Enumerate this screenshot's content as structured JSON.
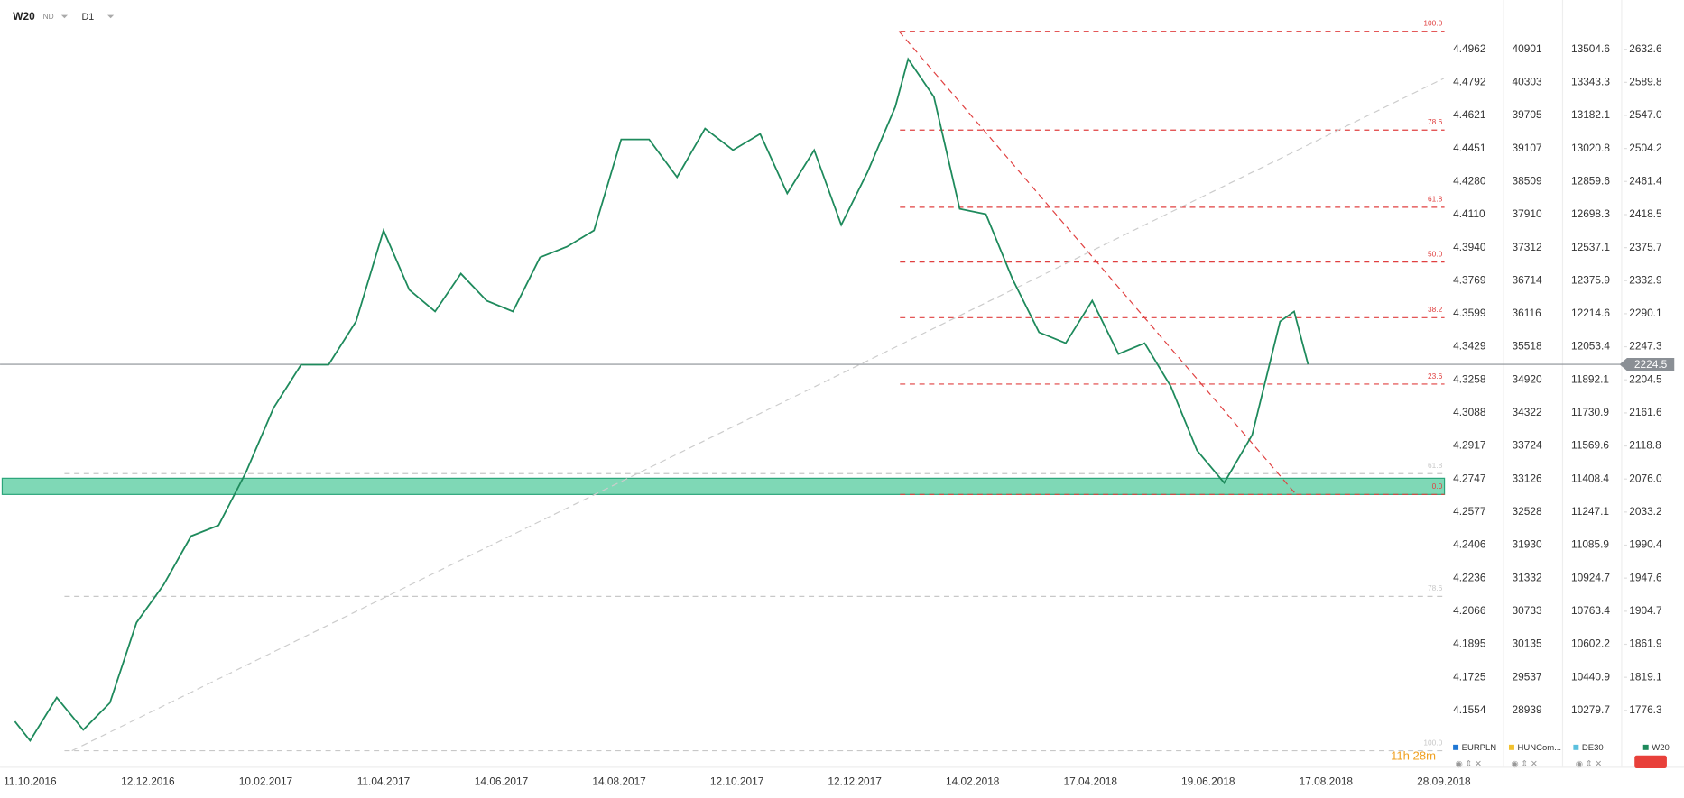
{
  "chart_data": {
    "type": "line",
    "symbol": "W20",
    "symbol_type": "IND",
    "interval": "D1",
    "timer": "11h 28m",
    "last_price": 2224.5,
    "ylim": [
      1709.6,
      2696.5
    ],
    "yticks": [
      2632.6,
      2589.8,
      {
        "value": 2547.0,
        "label": "2547.0"
      },
      2504.2,
      2461.4,
      2418.5,
      2375.7,
      2332.9,
      2290.1,
      2247.3,
      2204.5,
      2161.6,
      2118.8,
      {
        "value": 2076.0,
        "label": "2076.0"
      },
      2033.2,
      1990.4,
      1947.6,
      1904.7,
      1861.9,
      1819.1,
      1776.3
    ],
    "other_axes": [
      {
        "name": "EURPLN",
        "labels": [
          "4.4962",
          "4.4792",
          "4.4621",
          "4.4451",
          "4.4280",
          "4.4110",
          "4.3940",
          "4.3769",
          "4.3599",
          "4.3429",
          "4.3258",
          "4.3088",
          "4.2917",
          "4.2747",
          "4.2577",
          "4.2406",
          "4.2236",
          "4.2066",
          "4.1895",
          "4.1725",
          "4.1554"
        ]
      },
      {
        "name": "HUNComp",
        "labels": [
          "40901",
          "40303",
          "39705",
          "39107",
          "38509",
          "37910",
          "37312",
          "36714",
          "36116",
          "35518",
          "34920",
          "34322",
          "33724",
          "33126",
          "32528",
          "31930",
          "31332",
          "30733",
          "30135",
          "29537",
          "28939"
        ]
      },
      {
        "name": "DE30",
        "labels": [
          "13504.6",
          "13343.3",
          "13182.1",
          "13020.8",
          "12859.6",
          "12698.3",
          "12537.1",
          "12375.9",
          "12214.6",
          "12053.4",
          "11892.1",
          "11730.9",
          "11569.6",
          "11408.4",
          "11247.1",
          "11085.9",
          "10924.7",
          "10763.4",
          "10602.2",
          "10440.9",
          "10279.7"
        ]
      }
    ],
    "xticks": [
      "11.10.2016",
      "12.12.2016",
      "10.02.2017",
      "11.04.2017",
      "14.06.2017",
      "14.08.2017",
      "12.10.2017",
      "12.12.2017",
      "14.02.2018",
      "17.04.2018",
      "19.06.2018",
      "17.08.2018",
      "28.09.2018"
    ],
    "x": [
      "03.10.2016",
      "11.10.2016",
      "25.10.2016",
      "08.11.2016",
      "22.11.2016",
      "06.12.2016",
      "20.12.2016",
      "03.01.2017",
      "17.01.2017",
      "31.01.2017",
      "14.02.2017",
      "28.02.2017",
      "14.03.2017",
      "28.03.2017",
      "11.04.2017",
      "25.04.2017",
      "09.05.2017",
      "23.05.2017",
      "06.06.2017",
      "20.06.2017",
      "04.07.2017",
      "18.07.2017",
      "01.08.2017",
      "15.08.2017",
      "29.08.2017",
      "12.09.2017",
      "26.09.2017",
      "10.10.2017",
      "24.10.2017",
      "07.11.2017",
      "21.11.2017",
      "05.12.2017",
      "19.12.2017",
      "03.01.2018",
      "10.01.2018",
      "24.01.2018",
      "07.02.2018",
      "21.02.2018",
      "07.03.2018",
      "21.03.2018",
      "04.04.2018",
      "18.04.2018",
      "02.05.2018",
      "16.05.2018",
      "30.05.2018",
      "13.06.2018",
      "27.06.2018",
      "11.07.2018",
      "25.07.2018",
      "01.08.2018",
      "08.08.2018"
    ],
    "series": [
      {
        "name": "W20",
        "color": "#1e8a5c",
        "values": [
          1762,
          1737,
          1793,
          1751,
          1786,
          1890,
          1939,
          2002,
          2016,
          2085,
          2168,
          2224,
          2224,
          2280,
          2398,
          2321,
          2293,
          2342,
          2307,
          2293,
          2363,
          2377,
          2398,
          2516,
          2516,
          2467,
          2530,
          2502,
          2523,
          2446,
          2502,
          2405,
          2474,
          2558,
          2620,
          2571,
          2426,
          2419,
          2335,
          2266,
          2252,
          2307,
          2238,
          2252,
          2196,
          2113,
          2071,
          2133,
          2280,
          2293,
          2224.5
        ]
      }
    ],
    "zone": [
      2056,
      2077
    ],
    "fib_levels": [
      {
        "label": "100.0",
        "price": 2656,
        "color": "#e04040"
      },
      {
        "label": "78.6",
        "price": 2528,
        "color": "#e04040"
      },
      {
        "label": "61.8",
        "price": 2428,
        "color": "#e04040"
      },
      {
        "label": "50.0",
        "price": 2357,
        "color": "#e04040"
      },
      {
        "label": "38.2",
        "price": 2285,
        "color": "#e04040"
      },
      {
        "label": "23.6",
        "price": 2199,
        "color": "#e04040"
      },
      {
        "label": "0.0",
        "price": 2056,
        "color": "#e04040"
      },
      {
        "label": "61.8",
        "price": 2083,
        "color": "#c8c8c8"
      },
      {
        "label": "78.6",
        "price": 1924,
        "color": "#c8c8c8"
      },
      {
        "label": "100.0",
        "price": 1724,
        "color": "#c8c8c8"
      }
    ],
    "trendlines": [
      {
        "from": [
          "05.01.2018",
          2656
        ],
        "to": [
          "02.08.2018",
          2056
        ],
        "color": "#e04040"
      },
      {
        "from": [
          "02.11.2016",
          1724
        ],
        "to": [
          "28.09.2018",
          2595
        ],
        "color": "#cccccc"
      }
    ],
    "legend": [
      {
        "name": "EURPLN",
        "color": "#1f77d4"
      },
      {
        "name": "HUNCom...",
        "color": "#f2c12e"
      },
      {
        "name": "DE30",
        "color": "#5bc0de"
      },
      {
        "name": "W20",
        "color": "#1e8a5c"
      }
    ]
  }
}
